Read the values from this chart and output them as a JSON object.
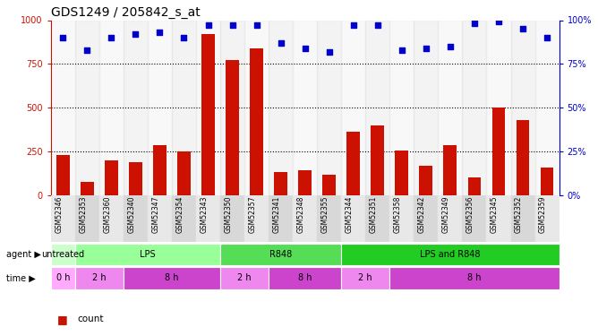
{
  "title": "GDS1249 / 205842_s_at",
  "samples": [
    "GSM52346",
    "GSM52353",
    "GSM52360",
    "GSM52340",
    "GSM52347",
    "GSM52354",
    "GSM52343",
    "GSM52350",
    "GSM52357",
    "GSM52341",
    "GSM52348",
    "GSM52355",
    "GSM52344",
    "GSM52351",
    "GSM52358",
    "GSM52342",
    "GSM52349",
    "GSM52356",
    "GSM52345",
    "GSM52352",
    "GSM52359"
  ],
  "counts": [
    230,
    75,
    195,
    185,
    285,
    250,
    920,
    770,
    840,
    130,
    140,
    115,
    360,
    395,
    255,
    165,
    285,
    100,
    500,
    430,
    155
  ],
  "percentiles": [
    90,
    83,
    90,
    92,
    93,
    90,
    97,
    97,
    97,
    87,
    84,
    82,
    97,
    97,
    83,
    84,
    85,
    98,
    99,
    95,
    90
  ],
  "agent_groups": [
    {
      "label": "untreated",
      "start": 0,
      "end": 1,
      "color": "#ccffcc"
    },
    {
      "label": "LPS",
      "start": 1,
      "end": 7,
      "color": "#99ff99"
    },
    {
      "label": "R848",
      "start": 7,
      "end": 12,
      "color": "#55dd55"
    },
    {
      "label": "LPS and R848",
      "start": 12,
      "end": 21,
      "color": "#22cc22"
    }
  ],
  "time_groups": [
    {
      "label": "0 h",
      "start": 0,
      "end": 1,
      "color": "#ffaaff"
    },
    {
      "label": "2 h",
      "start": 1,
      "end": 3,
      "color": "#ee88ee"
    },
    {
      "label": "8 h",
      "start": 3,
      "end": 7,
      "color": "#cc44cc"
    },
    {
      "label": "2 h",
      "start": 7,
      "end": 9,
      "color": "#ee88ee"
    },
    {
      "label": "8 h",
      "start": 9,
      "end": 12,
      "color": "#cc44cc"
    },
    {
      "label": "2 h",
      "start": 12,
      "end": 14,
      "color": "#ee88ee"
    },
    {
      "label": "8 h",
      "start": 14,
      "end": 21,
      "color": "#cc44cc"
    }
  ],
  "ylim_left": [
    0,
    1000
  ],
  "ylim_right": [
    0,
    100
  ],
  "yticks_left": [
    0,
    250,
    500,
    750,
    1000
  ],
  "yticks_right": [
    0,
    25,
    50,
    75,
    100
  ],
  "bar_color": "#cc1100",
  "dot_color": "#0000cc",
  "background_color": "#ffffff",
  "title_fontsize": 10,
  "tick_fontsize": 7,
  "sample_fontsize": 5.5,
  "row_fontsize": 7,
  "legend_fontsize": 7.5
}
